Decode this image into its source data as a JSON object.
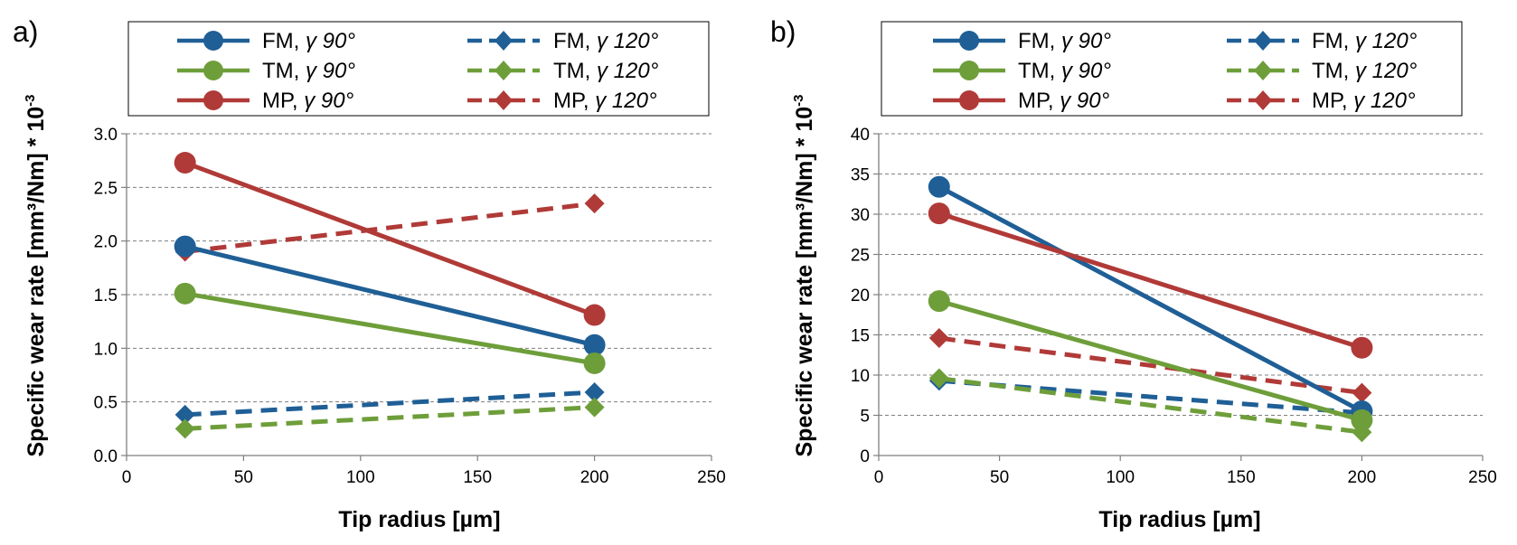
{
  "chart_data": [
    {
      "type": "line",
      "panel_label": "a)",
      "xlabel": "Tip radius [µm]",
      "ylabel": "Specific wear rate [mm³/Nm] * 10",
      "ylabel_exp": "-3",
      "xlim": [
        0,
        250
      ],
      "ylim": [
        0,
        3
      ],
      "xticks": [
        0,
        50,
        100,
        150,
        200,
        250
      ],
      "yticks": [
        0,
        0.5,
        1,
        1.5,
        2,
        2.5,
        3
      ],
      "ytick_decimals": 1,
      "grid": "horizontal dashed",
      "legend_position": "top",
      "x": [
        25,
        200
      ],
      "series": [
        {
          "name": "FM, γ 90°",
          "material": "FM",
          "angle": "γ 90°",
          "color": "#1F5F96",
          "dash": false,
          "marker": "circle",
          "values": [
            1.95,
            1.03
          ]
        },
        {
          "name": "FM, γ 120°",
          "material": "FM",
          "angle": "γ 120°",
          "color": "#1F5F96",
          "dash": true,
          "marker": "diamond",
          "values": [
            0.38,
            0.59
          ]
        },
        {
          "name": "TM, γ 90°",
          "material": "TM",
          "angle": "γ 90°",
          "color": "#6E9E3A",
          "dash": false,
          "marker": "circle",
          "values": [
            1.51,
            0.86
          ]
        },
        {
          "name": "TM, γ 120°",
          "material": "TM",
          "angle": "γ 120°",
          "color": "#6E9E3A",
          "dash": true,
          "marker": "diamond",
          "values": [
            0.25,
            0.45
          ]
        },
        {
          "name": "MP, γ 90°",
          "material": "MP",
          "angle": "γ 90°",
          "color": "#B03A37",
          "dash": false,
          "marker": "circle",
          "values": [
            2.73,
            1.31
          ]
        },
        {
          "name": "MP, γ 120°",
          "material": "MP",
          "angle": "γ 120°",
          "color": "#B03A37",
          "dash": true,
          "marker": "diamond",
          "values": [
            1.9,
            2.35
          ]
        }
      ]
    },
    {
      "type": "line",
      "panel_label": "b)",
      "xlabel": "Tip radius [µm]",
      "ylabel": "Specific wear rate [mm³/Nm] * 10",
      "ylabel_exp": "-3",
      "xlim": [
        0,
        250
      ],
      "ylim": [
        0,
        40
      ],
      "xticks": [
        0,
        50,
        100,
        150,
        200,
        250
      ],
      "yticks": [
        0,
        5,
        10,
        15,
        20,
        25,
        30,
        35,
        40
      ],
      "ytick_decimals": 0,
      "grid": "horizontal dashed",
      "legend_position": "top",
      "x": [
        25,
        200
      ],
      "series": [
        {
          "name": "FM, γ 90°",
          "material": "FM",
          "angle": "γ 90°",
          "color": "#1F5F96",
          "dash": false,
          "marker": "circle",
          "values": [
            33.4,
            5.5
          ]
        },
        {
          "name": "FM, γ 120°",
          "material": "FM",
          "angle": "γ 120°",
          "color": "#1F5F96",
          "dash": true,
          "marker": "diamond",
          "values": [
            9.3,
            5.3
          ]
        },
        {
          "name": "TM, γ 90°",
          "material": "TM",
          "angle": "γ 90°",
          "color": "#6E9E3A",
          "dash": false,
          "marker": "circle",
          "values": [
            19.2,
            4.4
          ]
        },
        {
          "name": "TM, γ 120°",
          "material": "TM",
          "angle": "γ 120°",
          "color": "#6E9E3A",
          "dash": true,
          "marker": "diamond",
          "values": [
            9.6,
            2.9
          ]
        },
        {
          "name": "MP, γ 90°",
          "material": "MP",
          "angle": "γ 90°",
          "color": "#B03A37",
          "dash": false,
          "marker": "circle",
          "values": [
            30.1,
            13.4
          ]
        },
        {
          "name": "MP, γ 120°",
          "material": "MP",
          "angle": "γ 120°",
          "color": "#B03A37",
          "dash": true,
          "marker": "diamond",
          "values": [
            14.6,
            7.8
          ]
        }
      ]
    }
  ]
}
